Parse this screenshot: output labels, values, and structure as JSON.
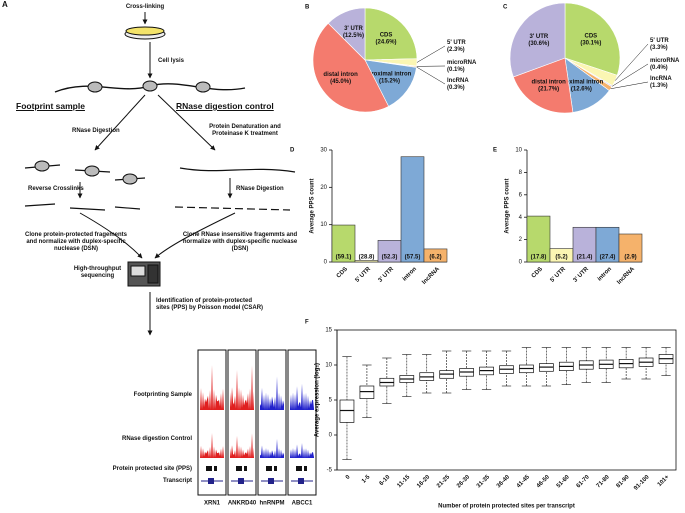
{
  "diagram": {
    "panel": "A",
    "labels": [
      "Cross-linking",
      "Cell lysis",
      "Footprint sample",
      "RNase digestion control",
      "RNase Digestion",
      "Protein Denaturation and Proteinase K treatment",
      "Reverse Crosslinks",
      "RNase Digestion",
      "Clone protein-protected fragements and normalize with duplex-specific nuclease (DSN)",
      "Clone RNase insensitive fragemmts and normalize with duplex-specific nuclease (DSN)",
      "High-throughput sequencing",
      "Identification of protein-protected sites (PPS) by Poisson model (CSAR)"
    ],
    "tracks": [
      "Footprinting Sample",
      "RNase digestion Control",
      "Protein protected site (PPS)",
      "Transcript"
    ],
    "genes": [
      "XRN1",
      "ANKRD40",
      "hnRNPM",
      "ABCC1"
    ]
  },
  "chart_data": [
    {
      "type": "pie",
      "panel": "B",
      "categories": [
        "CDS",
        "5' UTR",
        "microRNA",
        "lncRNA",
        "proximal intron",
        "distal intron",
        "3' UTR"
      ],
      "values": [
        24.6,
        2.3,
        0.1,
        0.3,
        15.2,
        45.0,
        12.5
      ],
      "value_labels": [
        "(24.6%)",
        "(2.3%)",
        "(0.1%)",
        "(0.3%)",
        "(15.2%)",
        "(45.0%)",
        "(12.5%)"
      ],
      "colors": [
        "#b7d96c",
        "#fbf6b3",
        "#d9d4ec",
        "#f5b26b",
        "#7ea9d6",
        "#f47b6e",
        "#b9b2da"
      ]
    },
    {
      "type": "pie",
      "panel": "C",
      "categories": [
        "CDS",
        "5' UTR",
        "microRNA",
        "lncRNA",
        "proximal intron",
        "distal intron",
        "3' UTR"
      ],
      "values": [
        30.1,
        3.3,
        0.4,
        1.3,
        12.6,
        21.7,
        30.6
      ],
      "value_labels": [
        "(30.1%)",
        "(3.3%)",
        "(0.4%)",
        "(1.3%)",
        "(12.6%)",
        "(21.7%)",
        "(30.6%)"
      ],
      "colors": [
        "#b7d96c",
        "#fbf6b3",
        "#d9d4ec",
        "#f5b26b",
        "#7ea9d6",
        "#f47b6e",
        "#b9b2da"
      ]
    },
    {
      "type": "bar",
      "panel": "D",
      "y_label": "Average PPS count",
      "categories": [
        "CDS",
        "5' UTR",
        "3' UTR",
        "intron",
        "lncRNA"
      ],
      "values": [
        9.9,
        0.4,
        5.8,
        28.2,
        3.5
      ],
      "bar_labels": [
        "(59.1)",
        "(28.8)",
        "(52.3)",
        "(57.5)",
        "(6.2)"
      ],
      "colors": [
        "#b7d96c",
        "#fbf6b3",
        "#b9b2da",
        "#7ea9d6",
        "#f5b26b"
      ],
      "ylim": [
        0,
        30
      ],
      "yticks": [
        0,
        10,
        20,
        30
      ]
    },
    {
      "type": "bar",
      "panel": "E",
      "y_label": "Average PPS count",
      "categories": [
        "CDS",
        "5' UTR",
        "3' UTR",
        "intron",
        "lncRNA"
      ],
      "values": [
        4.1,
        1.2,
        3.1,
        3.1,
        2.5
      ],
      "bar_labels": [
        "(17.8)",
        "(5.2)",
        "(21.4)",
        "(27.4)",
        "(2.9)"
      ],
      "colors": [
        "#b7d96c",
        "#fbf6b3",
        "#b9b2da",
        "#7ea9d6",
        "#f5b26b"
      ],
      "ylim": [
        0,
        10
      ],
      "yticks": [
        0,
        2,
        4,
        6,
        8,
        10
      ]
    },
    {
      "type": "box",
      "panel": "F",
      "y_label": "Average expression (log₂)",
      "x_label": "Number of protein protected sites per transcript",
      "categories": [
        "0",
        "1-5",
        "6-10",
        "11-15",
        "16-20",
        "21-25",
        "26-30",
        "31-35",
        "36-40",
        "41-45",
        "46-50",
        "51-60",
        "61-70",
        "71-80",
        "81-90",
        "91-100",
        "101+"
      ],
      "whislo": [
        -3.5,
        2.5,
        4.5,
        5.5,
        6,
        6,
        6.5,
        6.5,
        7,
        7,
        7,
        7.2,
        7.5,
        7.5,
        8,
        8,
        8.5
      ],
      "q1": [
        1.8,
        5.2,
        7,
        7.5,
        7.8,
        8.1,
        8.4,
        8.6,
        8.8,
        8.9,
        9.1,
        9.2,
        9.4,
        9.5,
        9.6,
        9.8,
        10.2
      ],
      "med": [
        3.5,
        6.2,
        7.5,
        8,
        8.3,
        8.7,
        9,
        9.2,
        9.4,
        9.5,
        9.7,
        9.8,
        10,
        10.1,
        10.2,
        10.4,
        10.9
      ],
      "q3": [
        5,
        7,
        8.1,
        8.5,
        8.9,
        9.2,
        9.5,
        9.7,
        9.9,
        10,
        10.2,
        10.4,
        10.6,
        10.7,
        10.8,
        11,
        11.5
      ],
      "whishi": [
        11.2,
        10,
        11,
        11.5,
        11.5,
        12,
        12,
        12,
        12,
        12.5,
        12.5,
        12.5,
        12.5,
        12.5,
        12.5,
        12.5,
        12.5
      ],
      "ylim": [
        -5,
        15
      ],
      "yticks": [
        -5,
        0,
        5,
        10,
        15
      ]
    }
  ]
}
